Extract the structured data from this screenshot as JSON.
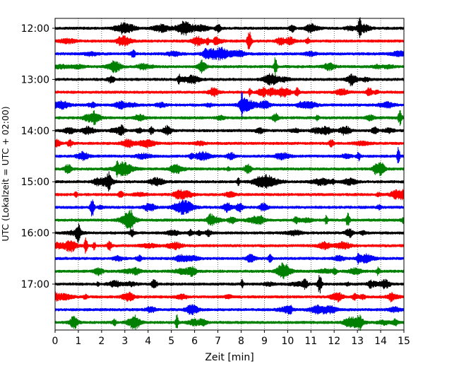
{
  "chart_data": {
    "type": "line",
    "title": "",
    "xlabel": "Zeit  [min]",
    "ylabel": "UTC (Lokalzeit = UTC + 02:00)",
    "xlim": [
      0,
      15
    ],
    "x_ticks": [
      "0",
      "1",
      "2",
      "3",
      "4",
      "5",
      "6",
      "7",
      "8",
      "9",
      "10",
      "11",
      "12",
      "13",
      "14",
      "15"
    ],
    "y_ticks": [
      "12:00",
      "13:00",
      "14:00",
      "15:00",
      "16:00",
      "17:00"
    ],
    "grid": "vertical dotted",
    "legend": "none",
    "trace_colors": [
      "#000000",
      "#ff0000",
      "#0000ff",
      "#008000"
    ],
    "trace_start": "12:00",
    "trace_end": "17:45",
    "trace_interval_min": 15,
    "traces": [
      {
        "start": "12:00",
        "color": "#000000"
      },
      {
        "start": "12:15",
        "color": "#ff0000"
      },
      {
        "start": "12:30",
        "color": "#0000ff"
      },
      {
        "start": "12:45",
        "color": "#008000"
      },
      {
        "start": "13:00",
        "color": "#000000"
      },
      {
        "start": "13:15",
        "color": "#ff0000"
      },
      {
        "start": "13:30",
        "color": "#0000ff"
      },
      {
        "start": "13:45",
        "color": "#008000"
      },
      {
        "start": "14:00",
        "color": "#000000"
      },
      {
        "start": "14:15",
        "color": "#ff0000"
      },
      {
        "start": "14:30",
        "color": "#0000ff"
      },
      {
        "start": "14:45",
        "color": "#008000"
      },
      {
        "start": "15:00",
        "color": "#000000"
      },
      {
        "start": "15:15",
        "color": "#ff0000"
      },
      {
        "start": "15:30",
        "color": "#0000ff"
      },
      {
        "start": "15:45",
        "color": "#008000"
      },
      {
        "start": "16:00",
        "color": "#000000"
      },
      {
        "start": "16:15",
        "color": "#ff0000"
      },
      {
        "start": "16:30",
        "color": "#0000ff"
      },
      {
        "start": "16:45",
        "color": "#008000"
      },
      {
        "start": "17:00",
        "color": "#000000"
      },
      {
        "start": "17:15",
        "color": "#ff0000"
      },
      {
        "start": "17:30",
        "color": "#0000ff"
      },
      {
        "start": "17:45",
        "color": "#008000"
      }
    ]
  }
}
